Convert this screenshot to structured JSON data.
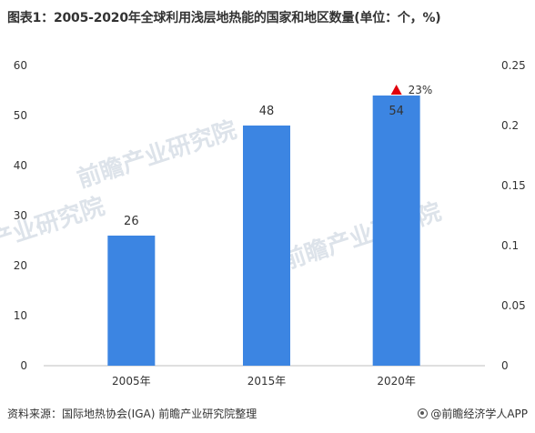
{
  "title": "图表1：2005-2020年全球利用浅层地热能的国家和地区数量(单位：个，%)",
  "source": "资料来源：国际地热协会(IGA) 前瞻产业研究院整理",
  "brand": "@前瞻经济学人APP",
  "watermark": "前瞻产业研究院",
  "colors": {
    "bar": "#3c85e2",
    "marker": "#e0000c",
    "text": "#333333",
    "axis": "#999999"
  },
  "chart_data": {
    "type": "bar",
    "categories": [
      "2005年",
      "2015年",
      "2020年"
    ],
    "values": [
      26,
      48,
      54
    ],
    "value_labels": [
      "26",
      "48",
      "54"
    ],
    "ylim": [
      0,
      60
    ],
    "yticks": [
      0,
      10,
      20,
      30,
      40,
      50,
      60
    ],
    "y2lim": [
      0,
      0.25
    ],
    "y2ticks": [
      "0",
      "0.05",
      "0.1",
      "0.15",
      "0.2",
      "0.25"
    ],
    "growth": {
      "category": "2020年",
      "value": 0.23,
      "label": "23%"
    },
    "grid": false,
    "legend": "none"
  }
}
